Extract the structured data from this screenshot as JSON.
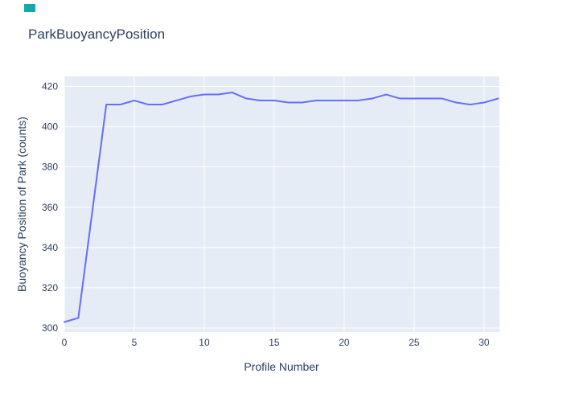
{
  "header": {
    "title": "ParkBuoyancyPosition"
  },
  "decor": {
    "teal_marker_color": "#17a9a9"
  },
  "chart_data": {
    "type": "line",
    "title": "ParkBuoyancyPosition",
    "xlabel": "Profile Number",
    "ylabel": "Buoyancy Position of Park (counts)",
    "x": [
      0,
      1,
      2,
      3,
      4,
      5,
      6,
      7,
      8,
      9,
      10,
      11,
      12,
      13,
      14,
      15,
      16,
      17,
      18,
      19,
      20,
      21,
      22,
      23,
      24,
      25,
      26,
      27,
      28,
      29,
      30,
      31
    ],
    "y": [
      303,
      305,
      358,
      411,
      411,
      413,
      411,
      411,
      413,
      415,
      416,
      416,
      417,
      414,
      413,
      413,
      412,
      412,
      413,
      413,
      413,
      413,
      414,
      416,
      414,
      414,
      414,
      414,
      412,
      411,
      412,
      414
    ],
    "x_ticks": [
      0,
      5,
      10,
      15,
      20,
      25,
      30
    ],
    "y_ticks": [
      300,
      320,
      340,
      360,
      380,
      400,
      420
    ],
    "xlim": [
      0,
      31.1
    ],
    "ylim": [
      298,
      425
    ],
    "grid_on": true,
    "legend": "none",
    "line_color": "#636efa",
    "plot_bg": "#e5ecf6",
    "grid_color": "#ffffff",
    "text_color": "#2a3f5f"
  }
}
